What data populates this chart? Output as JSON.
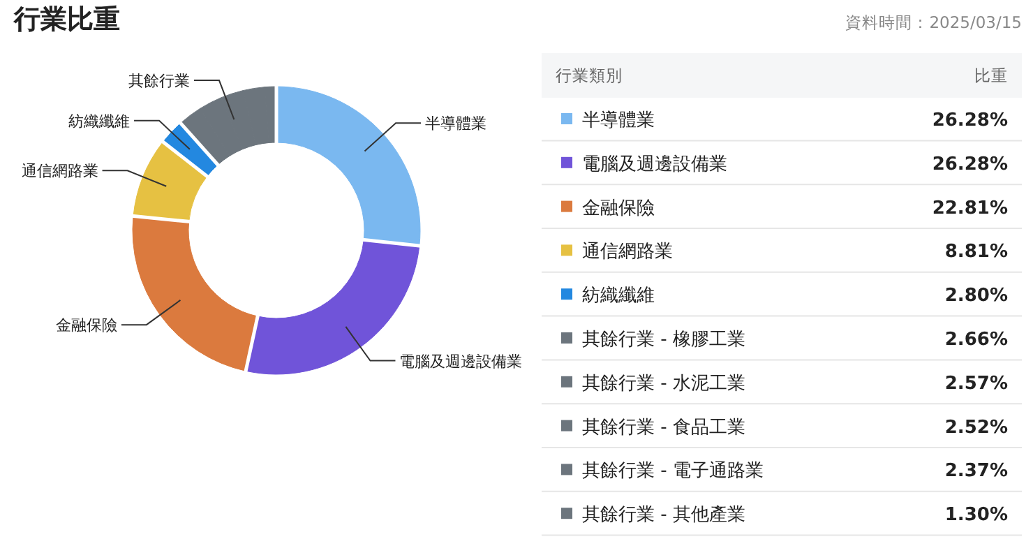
{
  "chart_data": {
    "type": "donut",
    "title": "行業比重",
    "subtitle": "資料時間：2025/03/15",
    "legend_title": "行業類別",
    "ylabel": "比重",
    "categories": [
      "半導體業",
      "電腦及週邊設備業",
      "金融保險",
      "通信網路業",
      "紡織纖維",
      "其餘行業 - 橡膠工業",
      "其餘行業 - 水泥工業",
      "其餘行業 - 食品工業",
      "其餘行業 - 電子通路業",
      "其餘行業 - 其他產業"
    ],
    "values": [
      26.28,
      26.28,
      22.81,
      8.81,
      2.8,
      2.66,
      2.57,
      2.52,
      2.37,
      1.3
    ],
    "colors": [
      "#7ab8f0",
      "#7054d9",
      "#db7a3e",
      "#e6c142",
      "#2388e0",
      "#6c757d",
      "#6c757d",
      "#6c757d",
      "#6c757d",
      "#6c757d"
    ],
    "value_labels": [
      "26.28%",
      "26.28%",
      "22.81%",
      "8.81%",
      "2.80%",
      "2.66%",
      "2.57%",
      "2.52%",
      "2.37%",
      "1.30%"
    ],
    "annotations": [
      "其餘行業"
    ],
    "legend": "right"
  }
}
